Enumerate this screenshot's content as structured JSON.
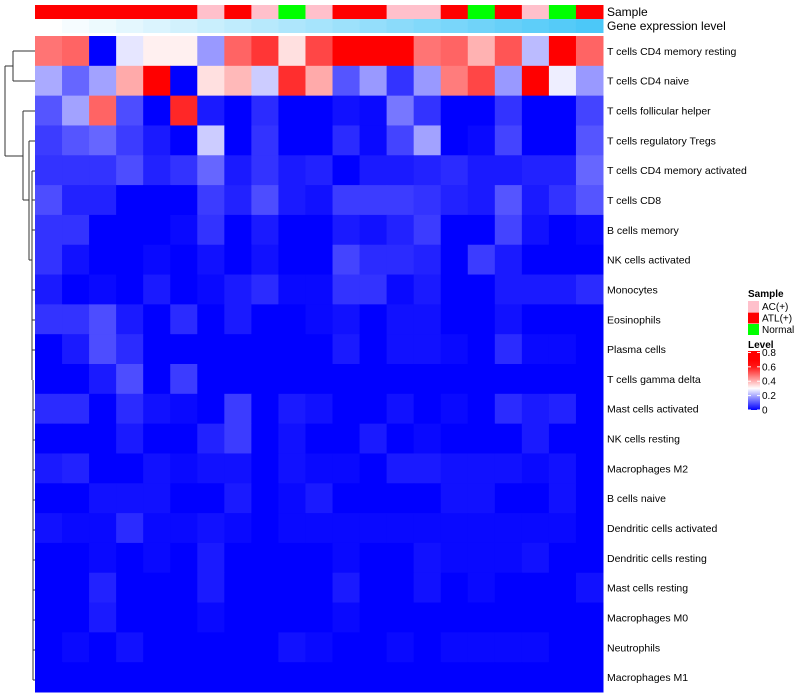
{
  "chart_data": {
    "type": "heatmap",
    "annotation_labels": [
      "Sample",
      "Gene expression level"
    ],
    "sample_groups": [
      "ATL(+)",
      "ATL(+)",
      "ATL(+)",
      "ATL(+)",
      "ATL(+)",
      "ATL(+)",
      "AC(+)",
      "ATL(+)",
      "AC(+)",
      "Normal",
      "AC(+)",
      "ATL(+)",
      "ATL(+)",
      "AC(+)",
      "AC(+)",
      "ATL(+)",
      "Normal",
      "ATL(+)",
      "AC(+)",
      "Normal",
      "ATL(+)"
    ],
    "gene_expression_level": [
      0,
      0.05,
      0.1,
      0.15,
      0.2,
      0.25,
      0.3,
      0.35,
      0.4,
      0.45,
      0.5,
      0.55,
      0.6,
      0.65,
      0.7,
      0.75,
      0.8,
      0.85,
      0.9,
      0.95,
      1.0
    ],
    "rows": [
      "T cells CD4 memory resting",
      "T cells CD4 naive",
      "T cells follicular helper",
      "T cells regulatory  Tregs",
      "T cells CD4 memory activated",
      "T cells CD8",
      "B cells memory",
      "NK cells activated",
      "Monocytes",
      "Eosinophils",
      "Plasma cells",
      "T cells gamma delta",
      "Mast cells activated",
      "NK cells resting",
      "Macrophages M2",
      "B cells naive",
      "Dendritic cells activated",
      "Dendritic cells resting",
      "Mast cells resting",
      "Macrophages M0",
      "Neutrophils",
      "Macrophages M1"
    ],
    "values": [
      [
        0.48,
        0.5,
        0,
        0.27,
        0.32,
        0.32,
        0.18,
        0.5,
        0.56,
        0.34,
        0.54,
        0.7,
        0.7,
        0.7,
        0.48,
        0.5,
        0.4,
        0.52,
        0.22,
        0.7,
        0.5
      ],
      [
        0.2,
        0.12,
        0.19,
        0.41,
        0.65,
        0,
        0.34,
        0.39,
        0.24,
        0.57,
        0.41,
        0.1,
        0.18,
        0.06,
        0.18,
        0.47,
        0.54,
        0.18,
        0.65,
        0.28,
        0.18
      ],
      [
        0.1,
        0.19,
        0.5,
        0.09,
        0,
        0.58,
        0.03,
        0,
        0.05,
        0,
        0,
        0.02,
        0.01,
        0.14,
        0.06,
        0,
        0,
        0.06,
        0,
        0,
        0.08
      ],
      [
        0.07,
        0.1,
        0.12,
        0.07,
        0.03,
        0,
        0.24,
        0,
        0.06,
        0,
        0,
        0.05,
        0.01,
        0.08,
        0.19,
        0,
        0.01,
        0.08,
        0,
        0,
        0.1
      ],
      [
        0.06,
        0.06,
        0.06,
        0.09,
        0.04,
        0.06,
        0.12,
        0.03,
        0.06,
        0.03,
        0.04,
        0,
        0.03,
        0.03,
        0.04,
        0.05,
        0.03,
        0.03,
        0.04,
        0.04,
        0.12
      ],
      [
        0.09,
        0.04,
        0.04,
        0,
        0,
        0,
        0.07,
        0.04,
        0.09,
        0.03,
        0.02,
        0.07,
        0.07,
        0.07,
        0.06,
        0.04,
        0.03,
        0.1,
        0.03,
        0.06,
        0.1
      ],
      [
        0.06,
        0.06,
        0,
        0,
        0,
        0.01,
        0.06,
        0,
        0.03,
        0,
        0,
        0.03,
        0.02,
        0.04,
        0.07,
        0,
        0,
        0.08,
        0.02,
        0,
        0.01
      ],
      [
        0.06,
        0.02,
        0,
        0,
        0.01,
        0,
        0.02,
        0,
        0.02,
        0,
        0,
        0.08,
        0.05,
        0.05,
        0.04,
        0,
        0.07,
        0.03,
        0,
        0,
        0
      ],
      [
        0.03,
        0,
        0.01,
        0,
        0.03,
        0,
        0.01,
        0.03,
        0.05,
        0.01,
        0.01,
        0.06,
        0.06,
        0.01,
        0.03,
        0,
        0,
        0.03,
        0.03,
        0.03,
        0.05
      ],
      [
        0.06,
        0.06,
        0.09,
        0.03,
        0,
        0.05,
        0,
        0.03,
        0,
        0,
        0.01,
        0.02,
        0,
        0.02,
        0.02,
        0,
        0,
        0.02,
        0,
        0,
        0
      ],
      [
        0,
        0.03,
        0.09,
        0.05,
        0,
        0,
        0,
        0,
        0,
        0,
        0,
        0.03,
        0,
        0.02,
        0.02,
        0.01,
        0,
        0.05,
        0.01,
        0.01,
        0
      ],
      [
        0,
        0,
        0.03,
        0.09,
        0,
        0.07,
        0,
        0,
        0,
        0,
        0,
        0,
        0,
        0,
        0,
        0,
        0,
        0,
        0,
        0,
        0
      ],
      [
        0.05,
        0.05,
        0,
        0.05,
        0.02,
        0.01,
        0,
        0.07,
        0,
        0.03,
        0.02,
        0,
        0,
        0.02,
        0,
        0.01,
        0,
        0.05,
        0.03,
        0.04,
        0
      ],
      [
        0,
        0,
        0,
        0.03,
        0,
        0,
        0.04,
        0.07,
        0,
        0.02,
        0,
        0,
        0.03,
        0,
        0.01,
        0,
        0,
        0,
        0.03,
        0,
        0
      ],
      [
        0.03,
        0.04,
        0,
        0,
        0.02,
        0.01,
        0.02,
        0.02,
        0,
        0.02,
        0.01,
        0.01,
        0,
        0.03,
        0.03,
        0.02,
        0.02,
        0.02,
        0.01,
        0.02,
        0
      ],
      [
        0,
        0,
        0.02,
        0.02,
        0.02,
        0,
        0,
        0.03,
        0,
        0.01,
        0.03,
        0,
        0,
        0,
        0,
        0.02,
        0.02,
        0,
        0,
        0.02,
        0
      ],
      [
        0.02,
        0.01,
        0.01,
        0.05,
        0.01,
        0.01,
        0.02,
        0.01,
        0,
        0.01,
        0.01,
        0.01,
        0.01,
        0.01,
        0.01,
        0.01,
        0.01,
        0.01,
        0.01,
        0.01,
        0
      ],
      [
        0,
        0,
        0.01,
        0,
        0.01,
        0,
        0.03,
        0,
        0,
        0,
        0,
        0.01,
        0,
        0,
        0.02,
        0.01,
        0.01,
        0.01,
        0.02,
        0,
        0
      ],
      [
        0,
        0,
        0.04,
        0,
        0,
        0,
        0.03,
        0,
        0,
        0,
        0,
        0.03,
        0,
        0,
        0.02,
        0,
        0.01,
        0,
        0,
        0,
        0.02
      ],
      [
        0,
        0,
        0.03,
        0,
        0,
        0,
        0.01,
        0,
        0,
        0,
        0,
        0.01,
        0,
        0,
        0,
        0,
        0,
        0,
        0,
        0,
        0
      ],
      [
        0,
        0.01,
        0,
        0.02,
        0,
        0,
        0,
        0,
        0,
        0.02,
        0.01,
        0,
        0,
        0.01,
        0,
        0.01,
        0.01,
        0.01,
        0.01,
        0,
        0
      ],
      [
        0,
        0,
        0,
        0,
        0,
        0,
        0,
        0,
        0,
        0,
        0,
        0,
        0,
        0,
        0,
        0,
        0,
        0,
        0,
        0,
        0
      ]
    ],
    "legend": {
      "sample_title": "Sample",
      "sample_items": [
        {
          "label": "AC(+)",
          "color": "#ffc0cb"
        },
        {
          "label": "ATL(+)",
          "color": "#ff0000"
        },
        {
          "label": "Normal",
          "color": "#00ff00"
        }
      ],
      "level_title": "Level",
      "level_ticks": [
        "0.8",
        "0.6",
        "0.4",
        "0.2",
        "0"
      ],
      "level_tick_values": [
        0.8,
        0.6,
        0.4,
        0.2,
        0
      ],
      "placement": "right"
    },
    "colors": {
      "low": "#0000ff",
      "mid": "#ffffff",
      "high": "#ff0000",
      "gene_low": "#ffffff",
      "gene_high": "#4cc8f8"
    },
    "value_range": [
      0,
      0.8
    ]
  }
}
